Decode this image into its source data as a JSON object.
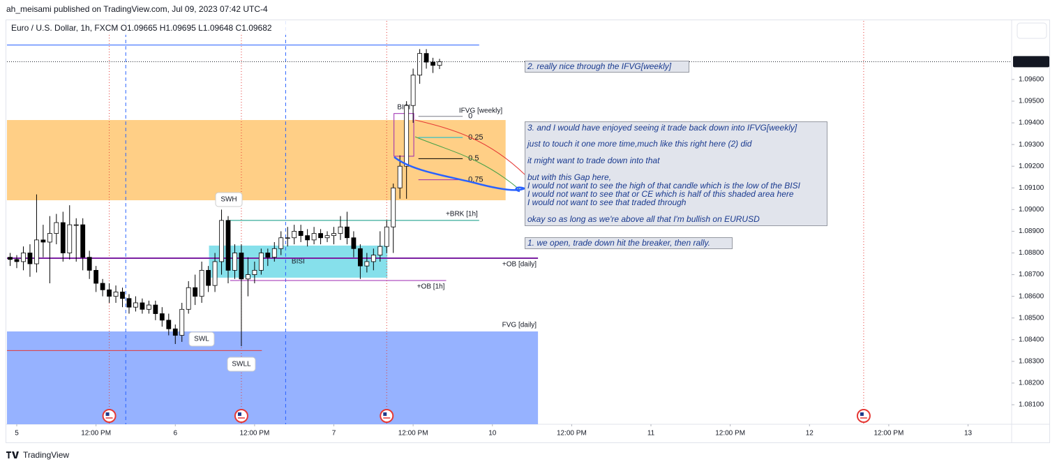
{
  "chart_data": {
    "type": "candlestick",
    "published": "ah_meisami published on TradingView.com, Jul 09, 2023 07:42 UTC-4",
    "legend_text": "Euro / U.S. Dollar, 1h, FXCM  O1.09665 H1.09695 L1.09648 C1.09682",
    "brand": "TradingView",
    "x": [
      -1,
      0,
      1,
      2,
      3,
      4,
      5,
      6,
      7,
      8,
      9,
      10,
      11,
      12,
      13,
      14,
      15,
      16,
      17,
      18,
      19,
      20,
      21,
      22,
      23,
      24,
      25,
      26,
      27,
      28,
      29,
      30,
      31,
      32,
      33,
      34,
      35,
      36,
      37,
      38,
      39,
      40,
      41,
      42,
      43,
      44,
      45,
      46,
      47,
      48,
      49,
      50,
      51,
      52,
      53,
      54,
      55,
      56,
      57,
      58,
      59,
      60,
      61,
      62,
      63,
      64
    ],
    "open": [
      1.0878,
      1.0877,
      1.0876,
      1.088,
      1.0875,
      1.0886,
      1.0885,
      1.0889,
      1.0894,
      1.088,
      1.0893,
      1.0893,
      1.0878,
      1.0872,
      1.0866,
      1.0863,
      1.086,
      1.0862,
      1.0859,
      1.0855,
      1.0857,
      1.0854,
      1.0856,
      1.0852,
      1.0849,
      1.0845,
      1.0842,
      1.0854,
      1.0864,
      1.086,
      1.0872,
      1.0865,
      1.0876,
      1.0895,
      1.0872,
      1.088,
      1.0868,
      1.087,
      1.0872,
      1.088,
      1.0878,
      1.0882,
      1.0887,
      1.0887,
      1.089,
      1.0888,
      1.0886,
      1.0889,
      1.0887,
      1.0888,
      1.0889,
      1.0892,
      1.0887,
      1.0882,
      1.0874,
      1.0876,
      1.0879,
      1.0883,
      1.0892,
      1.091,
      1.092,
      1.0948,
      1.0962,
      1.0972,
      1.0968,
      1.09665
    ],
    "high": [
      1.088,
      1.0879,
      1.0883,
      1.0884,
      1.0907,
      1.0893,
      1.0897,
      1.0898,
      1.0899,
      1.0902,
      1.0896,
      1.0896,
      1.0881,
      1.0874,
      1.0868,
      1.0866,
      1.0865,
      1.0864,
      1.0861,
      1.086,
      1.0859,
      1.0858,
      1.0858,
      1.0855,
      1.0852,
      1.0847,
      1.0857,
      1.0867,
      1.087,
      1.0876,
      1.0874,
      1.088,
      1.09,
      1.0897,
      1.0884,
      1.0884,
      1.0878,
      1.0876,
      1.0882,
      1.0882,
      1.0885,
      1.089,
      1.0892,
      1.0893,
      1.0893,
      1.0891,
      1.0892,
      1.0891,
      1.089,
      1.0892,
      1.0897,
      1.0899,
      1.089,
      1.0884,
      1.088,
      1.0882,
      1.089,
      1.0895,
      1.0912,
      1.0925,
      1.095,
      1.0965,
      1.0974,
      1.0974,
      1.097,
      1.09695
    ],
    "low": [
      1.0874,
      1.0873,
      1.0872,
      1.0869,
      1.0871,
      1.0878,
      1.0866,
      1.0884,
      1.0876,
      1.0877,
      1.0876,
      1.0872,
      1.0868,
      1.0862,
      1.086,
      1.0857,
      1.0857,
      1.0855,
      1.0852,
      1.0853,
      1.0852,
      1.0852,
      1.0849,
      1.0846,
      1.0842,
      1.0838,
      1.0839,
      1.0852,
      1.0856,
      1.0857,
      1.0862,
      1.0862,
      1.087,
      1.0866,
      1.0868,
      1.0837,
      1.086,
      1.0866,
      1.087,
      1.0874,
      1.0876,
      1.0879,
      1.0883,
      1.0884,
      1.0885,
      1.0883,
      1.0884,
      1.0884,
      1.0885,
      1.0884,
      1.0886,
      1.0884,
      1.0878,
      1.0868,
      1.0871,
      1.0872,
      1.0876,
      1.088,
      1.088,
      1.0905,
      1.0905,
      1.094,
      1.0958,
      1.0965,
      1.0963,
      1.09648
    ],
    "close": [
      1.0877,
      1.0876,
      1.088,
      1.0875,
      1.0886,
      1.0885,
      1.0889,
      1.0894,
      1.088,
      1.0893,
      1.0893,
      1.0878,
      1.0872,
      1.0866,
      1.0863,
      1.086,
      1.0862,
      1.0859,
      1.0855,
      1.0857,
      1.0854,
      1.0856,
      1.0852,
      1.0849,
      1.0845,
      1.0842,
      1.0854,
      1.0864,
      1.086,
      1.0872,
      1.0865,
      1.0876,
      1.0895,
      1.0872,
      1.088,
      1.0868,
      1.087,
      1.0872,
      1.088,
      1.0878,
      1.0882,
      1.0887,
      1.0887,
      1.089,
      1.0888,
      1.0886,
      1.0889,
      1.0887,
      1.0888,
      1.0889,
      1.0892,
      1.0887,
      1.0882,
      1.0874,
      1.0876,
      1.0879,
      1.0883,
      1.0892,
      1.091,
      1.092,
      1.0948,
      1.0962,
      1.0972,
      1.0968,
      1.09665,
      1.09682
    ],
    "up_color": "#ffffff",
    "down_color": "#000000",
    "xlim": [
      -1.48,
      150.6
    ],
    "xticks": [
      {
        "value": 0,
        "label": "5"
      },
      {
        "value": 12,
        "label": "12:00 PM"
      },
      {
        "value": 24,
        "label": "6"
      },
      {
        "value": 36,
        "label": "12:00 PM"
      },
      {
        "value": 48,
        "label": "7"
      },
      {
        "value": 60,
        "label": "12:00 PM"
      },
      {
        "value": 72,
        "label": "10"
      },
      {
        "value": 84,
        "label": "12:00 PM"
      },
      {
        "value": 96,
        "label": "11"
      },
      {
        "value": 108,
        "label": "12:00 PM"
      },
      {
        "value": 120,
        "label": "12"
      },
      {
        "value": 132,
        "label": "12:00 PM"
      },
      {
        "value": 144,
        "label": "13"
      }
    ],
    "ylim": [
      1.0801,
      1.0987
    ],
    "yticks": [
      {
        "value": 1.081,
        "label": "1.08100"
      },
      {
        "value": 1.082,
        "label": "1.08200"
      },
      {
        "value": 1.083,
        "label": "1.08300"
      },
      {
        "value": 1.084,
        "label": "1.08400"
      },
      {
        "value": 1.085,
        "label": "1.08500"
      },
      {
        "value": 1.086,
        "label": "1.08600"
      },
      {
        "value": 1.087,
        "label": "1.08700"
      },
      {
        "value": 1.088,
        "label": "1.08800"
      },
      {
        "value": 1.089,
        "label": "1.08900"
      },
      {
        "value": 1.09,
        "label": "1.09000"
      },
      {
        "value": 1.091,
        "label": "1.09100"
      },
      {
        "value": 1.092,
        "label": "1.09200"
      },
      {
        "value": 1.093,
        "label": "1.09300"
      },
      {
        "value": 1.094,
        "label": "1.09400"
      },
      {
        "value": 1.095,
        "label": "1.09500"
      },
      {
        "value": 1.096,
        "label": "1.09600"
      }
    ],
    "grid": false,
    "zones": [
      {
        "top": 1.09413,
        "bottom": 1.09043,
        "x0": -1.48,
        "x1": 74.0,
        "color": "#ffcc80"
      },
      {
        "top": 1.08438,
        "bottom": 1.0801,
        "x0": -1.48,
        "x1": 78.9,
        "color": "#90aeff",
        "label": "FVG [daily]"
      },
      {
        "top": 1.08834,
        "bottom": 1.08686,
        "x0": 29.1,
        "x1": 56.1,
        "color": "#80deea",
        "label": "BISI"
      },
      {
        "top": 1.09443,
        "bottom": 1.09246,
        "x0": 57.1,
        "x1": 60.1,
        "color": "#9c27b0",
        "label": "BISI"
      }
    ],
    "levels": [
      {
        "value": 1.09759,
        "x0": -1.48,
        "x1": 70.0,
        "color": "#2962ff"
      },
      {
        "value": 1.0895,
        "x0": 31.7,
        "x1": 70.0,
        "color": "#089981",
        "label": "+BRK [1h]"
      },
      {
        "value": 1.08776,
        "x0": -1.48,
        "x1": 78.9,
        "color": "#7b1fa2",
        "label": "+OB [daily]"
      },
      {
        "value": 1.08673,
        "x0": 32.3,
        "x1": 65.0,
        "color": "#9c27b0",
        "label": "+OB [1h]"
      },
      {
        "value": 1.0835,
        "x0": -1.48,
        "x1": 37.1,
        "color": "#e53935"
      }
    ],
    "vlines": [
      {
        "x": 14,
        "color": "#e53935",
        "dash": "dotted"
      },
      {
        "x": 16.5,
        "color": "#2962ff",
        "dash": "dashed"
      },
      {
        "x": 34,
        "color": "#e53935",
        "dash": "dotted"
      },
      {
        "x": 40.7,
        "color": "#2962ff",
        "dash": "dashed"
      },
      {
        "x": 56,
        "color": "#e53935",
        "dash": "dotted"
      },
      {
        "x": 128.2,
        "color": "#e53935",
        "dash": "dotted"
      }
    ],
    "fib": {
      "title": "IFVG [weekly]",
      "price_0": 1.0943,
      "price_1": 1.0904,
      "x0": 60.8,
      "x1": 67.5,
      "levels": [
        0,
        0.25,
        0.5,
        0.75
      ],
      "colors": [
        "#787b86",
        "#00bcd4",
        "#000000",
        "#9c27b0"
      ]
    },
    "swing_labels": [
      "SWH",
      "SWL",
      "SWLL"
    ],
    "notes": [
      {
        "text": "2. really nice through the IFVG[weekly]"
      },
      {
        "lines": [
          "3. and I would have enjoyed seeing it trade back down into IFVG[weekly]",
          "just to touch it one more time,much like this right here (2) did",
          "it might want to trade down into that",
          "but with this Gap here,",
          "I would not want to see the high of that candle which is the low of the BISI",
          "I would not want to see that or CE which is half of this shaded area here",
          "I would not want to see that traded through",
          "okay so as long as we're above all that I'm bullish on EURUSD"
        ]
      },
      {
        "text": "1. we open, trade down hit the breaker, then rally."
      }
    ]
  }
}
